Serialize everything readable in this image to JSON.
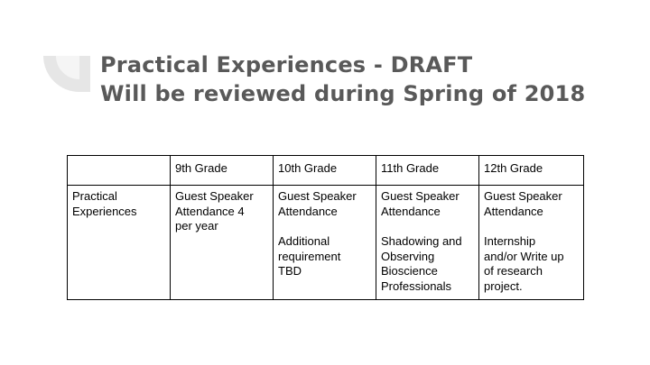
{
  "slide": {
    "title_line1": "Practical Experiences - DRAFT",
    "title_line2": "Will be reviewed during Spring of 2018",
    "decoration_color": "#e6e6e6",
    "title_color": "#595959"
  },
  "table": {
    "headers": [
      "",
      "9th Grade",
      "10th Grade",
      "11th Grade",
      "12th Grade"
    ],
    "row": {
      "label": [
        "Practical",
        "Experiences"
      ],
      "grade9": {
        "item1": [
          "Guest Speaker",
          "Attendance 4",
          "per year"
        ]
      },
      "grade10": {
        "item1": [
          "Guest Speaker",
          "Attendance"
        ],
        "item2": [
          "Additional",
          "requirement",
          "TBD"
        ]
      },
      "grade11": {
        "item1": [
          "Guest Speaker",
          "Attendance"
        ],
        "item2": [
          "Shadowing and",
          "Observing",
          "Bioscience",
          "Professionals"
        ]
      },
      "grade12": {
        "item1": [
          "Guest Speaker",
          "Attendance"
        ],
        "item2": [
          "Internship",
          "and/or Write up",
          "of research",
          "project."
        ]
      }
    }
  }
}
